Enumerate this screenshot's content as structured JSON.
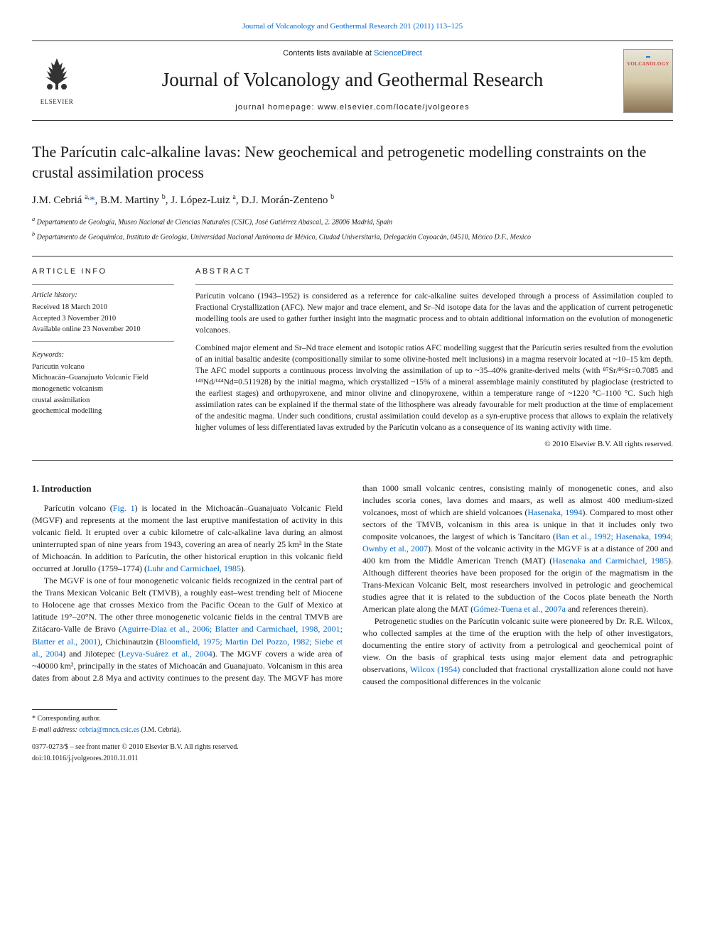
{
  "top_link": {
    "journal_ref": "Journal of Volcanology and Geothermal Research 201 (2011) 113–125"
  },
  "masthead": {
    "contents_prefix": "Contents lists available at ",
    "contents_link": "ScienceDirect",
    "journal_name": "Journal of Volcanology and Geothermal Research",
    "homepage_prefix": "journal homepage: ",
    "homepage_url": "www.elsevier.com/locate/jvolgeores",
    "elsevier_label": "ELSEVIER",
    "cover_top": "▬",
    "cover_title": "VOLCANOLOGY"
  },
  "article": {
    "title": "The Parícutin calc-alkaline lavas: New geochemical and petrogenetic modelling constraints on the crustal assimilation process",
    "authors_html": "J.M. Cebriá <sup>a,</sup>*, B.M. Martiny <sup>b</sup>, J. López-Luiz <sup>a</sup>, D.J. Morán-Zenteno <sup>b</sup>",
    "affiliations": [
      "Departamento de Geología, Museo Nacional de Ciencias Naturales (CSIC), José Gutiérrez Abascal, 2. 28006 Madrid, Spain",
      "Departamento de Geoquímica, Instituto de Geología, Universidad Nacional Autónoma de México, Ciudad Universitaria, Delegación Coyoacán, 04510, México D.F., Mexico"
    ],
    "affil_markers": [
      "a",
      "b"
    ]
  },
  "article_info": {
    "heading": "article info",
    "history_label": "Article history:",
    "received": "Received 18 March 2010",
    "accepted": "Accepted 3 November 2010",
    "online": "Available online 23 November 2010",
    "keywords_label": "Keywords:",
    "keywords": [
      "Parícutin volcano",
      "Michoacán–Guanajuato Volcanic Field",
      "monogenetic volcanism",
      "crustal assimilation",
      "geochemical modelling"
    ]
  },
  "abstract": {
    "heading": "abstract",
    "p1": "Parícutin volcano (1943–1952) is considered as a reference for calc-alkaline suites developed through a process of Assimilation coupled to Fractional Crystallization (AFC). New major and trace element, and Sr–Nd isotope data for the lavas and the application of current petrogenetic modelling tools are used to gather further insight into the magmatic process and to obtain additional information on the evolution of monogenetic volcanoes.",
    "p2": "Combined major element and Sr–Nd trace element and isotopic ratios AFC modelling suggest that the Parícutin series resulted from the evolution of an initial basaltic andesite (compositionally similar to some olivine-hosted melt inclusions) in a magma reservoir located at ~10–15 km depth. The AFC model supports a continuous process involving the assimilation of up to ~35–40% granite-derived melts (with ⁸⁷Sr/⁸⁶Sr=0.7085 and ¹⁴³Nd/¹⁴⁴Nd=0.511928) by the initial magma, which crystallized ~15% of a mineral assemblage mainly constituted by plagioclase (restricted to the earliest stages) and orthopyroxene, and minor olivine and clinopyroxene, within a temperature range of ~1220 °C–1100 °C. Such high assimilation rates can be explained if the thermal state of the lithosphere was already favourable for melt production at the time of emplacement of the andesitic magma. Under such conditions, crustal assimilation could develop as a syn-eruptive process that allows to explain the relatively higher volumes of less differentiated lavas extruded by the Parícutin volcano as a consequence of its waning activity with time.",
    "copyright": "© 2010 Elsevier B.V. All rights reserved."
  },
  "body": {
    "h_intro": "1. Introduction",
    "p1a": "Parícutin volcano (",
    "p1_fig": "Fig. 1",
    "p1b": ") is located in the Michoacán–Guanajuato Volcanic Field (MGVF) and represents at the moment the last eruptive manifestation of activity in this volcanic field. It erupted over a cubic kilometre of calc-alkaline lava during an almost uninterrupted span of nine years from 1943, covering an area of nearly 25 km² in the State of Michoacán. In addition to Parícutin, the other historical eruption in this volcanic field occurred at Jorullo (1759–1774) (",
    "p1_ref1": "Luhr and Carmichael, 1985",
    "p1c": ").",
    "p2a": "The MGVF is one of four monogenetic volcanic fields recognized in the central part of the Trans Mexican Volcanic Belt (TMVB), a roughly east–west trending belt of Miocene to Holocene age that crosses Mexico from the Pacific Ocean to the Gulf of Mexico at latitude 19°–20°N. The other three monogenetic volcanic fields in the central TMVB are Zitácaro-Valle de Bravo (",
    "p2_ref1": "Aguirre-Díaz et al., 2006; Blatter and Carmichael, 1998, 2001; Blatter et al., 2001",
    "p2b": "), Chichinautzin (",
    "p2_ref2": "Bloomfield, 1975; Martin Del Pozzo, 1982; Siebe et al., 2004",
    "p2c": ") and Jilotepec (",
    "p2_ref3": "Leyva-Suárez et al., 2004",
    "p2d": "). The MGVF covers a wide area of ~40000 km², principally in the states of Michoacán and Guanajuato. Volcanism in this area dates from about 2.8 Mya and activity continues to the present day. The MGVF has more than 1000 small volcanic centres, consisting mainly of monogenetic cones, and also includes scoria cones, lava domes and maars, as well as almost 400 medium-sized volcanoes, most of which are shield volcanoes (",
    "p2_ref4": "Hasenaka, 1994",
    "p2e": "). Compared to most other sectors of the TMVB, volcanism in this area is unique in that it includes only two composite volcanoes, the largest of which is Tancítaro (",
    "p2_ref5": "Ban et al., 1992; Hasenaka, 1994; Ownby et al., 2007",
    "p2f": "). Most of the volcanic activity in the MGVF is at a distance of 200 and 400 km from the Middle American Trench (MAT) (",
    "p2_ref6": "Hasenaka and Carmichael, 1985",
    "p2g": "). Although different theories have been proposed for the origin of the magmatism in the Trans-Mexican Volcanic Belt, most researchers involved in petrologic and geochemical studies agree that it is related to the subduction of the Cocos plate beneath the North American plate along the MAT (",
    "p2_ref7": "Gómez-Tuena et al., 2007a",
    "p2h": " and references therein).",
    "p3a": "Petrogenetic studies on the Parícutin volcanic suite were pioneered by Dr. R.E. Wilcox, who collected samples at the time of the eruption with the help of other investigators, documenting the entire story of activity from a petrological and geochemical point of view. On the basis of graphical tests using major element data and petrographic observations, ",
    "p3_ref1": "Wilcox (1954)",
    "p3b": " concluded that fractional crystallization alone could not have caused the compositional differences in the volcanic"
  },
  "footer": {
    "corr": "* Corresponding author.",
    "email_label": "E-mail address: ",
    "email": "cebria@mncn.csic.es",
    "email_suffix": " (J.M. Cebriá).",
    "issn": "0377-0273/$ – see front matter © 2010 Elsevier B.V. All rights reserved.",
    "doi": "doi:10.1016/j.jvolgeores.2010.11.011"
  },
  "colors": {
    "link": "#0066cc",
    "text": "#1a1a1a",
    "rule": "#333333",
    "thin_rule": "#999999"
  }
}
